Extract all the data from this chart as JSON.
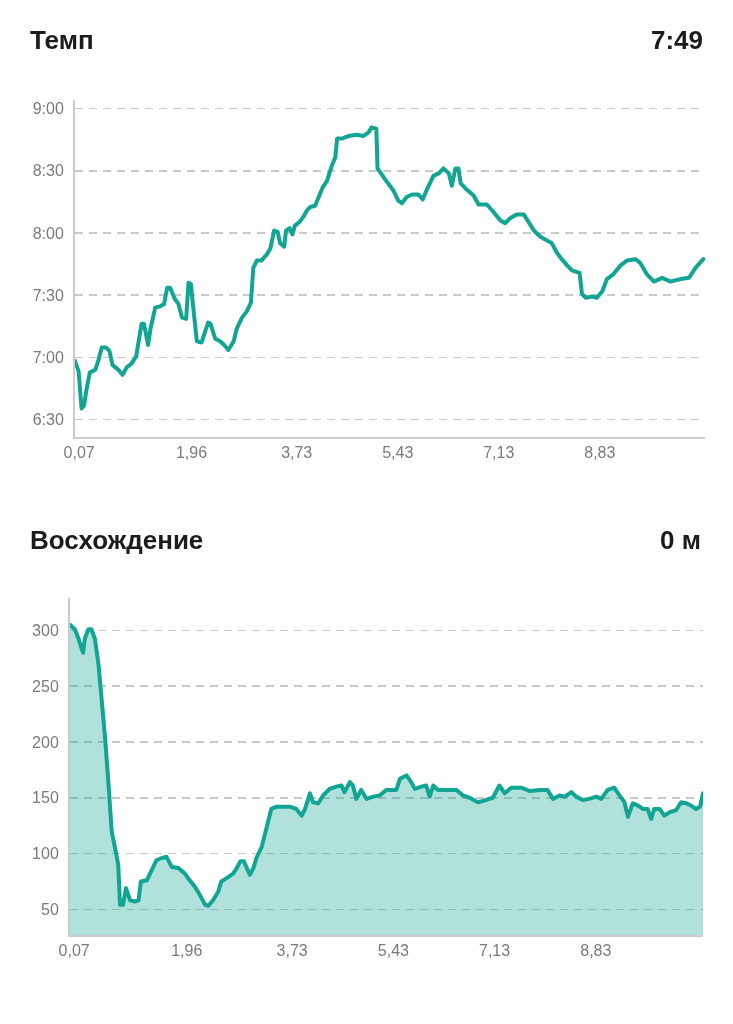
{
  "chart_data": [
    {
      "type": "line",
      "title": "Темп",
      "annotations": [
        "7:49"
      ],
      "x": [
        0,
        0.06,
        0.11,
        0.15,
        0.2,
        0.25,
        0.34,
        0.39,
        0.45,
        0.52,
        0.58,
        0.63,
        0.73,
        0.8,
        0.87,
        0.95,
        1.03,
        1.12,
        1.16,
        1.23,
        1.27,
        1.35,
        1.43,
        1.5,
        1.55,
        1.6,
        1.68,
        1.74,
        1.8,
        1.87,
        1.91,
        1.95,
        1.99,
        2.05,
        2.13,
        2.19,
        2.24,
        2.28,
        2.36,
        2.44,
        2.51,
        2.58,
        2.67,
        2.72,
        2.81,
        2.89,
        2.96,
        3.0,
        3.06,
        3.14,
        3.23,
        3.29,
        3.35,
        3.41,
        3.45,
        3.52,
        3.55,
        3.61,
        3.66,
        3.7,
        3.78,
        3.84,
        3.9,
        3.96,
        4.04,
        4.1,
        4.17,
        4.24,
        4.32,
        4.38,
        4.41,
        4.49,
        4.6,
        4.74,
        4.85,
        4.94,
        4.99,
        5.07,
        5.09,
        5.25,
        5.36,
        5.44,
        5.5,
        5.58,
        5.67,
        5.78,
        5.85,
        5.92,
        6.03,
        6.12,
        6.2,
        6.29,
        6.34,
        6.4,
        6.45,
        6.49,
        6.59,
        6.71,
        6.79,
        6.93,
        7.04,
        7.16,
        7.24,
        7.32,
        7.43,
        7.55,
        7.63,
        7.72,
        7.83,
        7.94,
        8.02,
        8.11,
        8.19,
        8.28,
        8.36,
        8.49,
        8.53,
        8.59,
        8.7,
        8.78,
        8.87,
        8.95,
        9.06,
        9.18,
        9.29,
        9.43,
        9.51,
        9.62,
        9.74,
        9.88,
        10.02,
        10.19,
        10.33,
        10.44,
        10.57
      ],
      "series": [
        {
          "color": "#12a593",
          "values": [
            6.97,
            6.89,
            6.59,
            6.61,
            6.76,
            6.88,
            6.9,
            6.97,
            7.08,
            7.08,
            7.05,
            6.94,
            6.9,
            6.86,
            6.92,
            6.95,
            7.01,
            7.27,
            7.27,
            7.1,
            7.23,
            7.4,
            7.41,
            7.43,
            7.56,
            7.56,
            7.47,
            7.43,
            7.32,
            7.31,
            7.6,
            7.59,
            7.4,
            7.13,
            7.12,
            7.21,
            7.28,
            7.27,
            7.15,
            7.13,
            7.1,
            7.06,
            7.13,
            7.23,
            7.32,
            7.37,
            7.44,
            7.72,
            7.78,
            7.78,
            7.83,
            7.88,
            8.02,
            8.01,
            7.92,
            7.89,
            8.02,
            8.04,
            7.99,
            8.06,
            8.09,
            8.13,
            8.18,
            8.21,
            8.22,
            8.29,
            8.37,
            8.42,
            8.54,
            8.61,
            8.76,
            8.76,
            8.78,
            8.79,
            8.78,
            8.81,
            8.85,
            8.84,
            8.52,
            8.41,
            8.34,
            8.26,
            8.24,
            8.29,
            8.31,
            8.31,
            8.27,
            8.35,
            8.46,
            8.48,
            8.52,
            8.48,
            8.38,
            8.52,
            8.52,
            8.4,
            8.35,
            8.3,
            8.23,
            8.23,
            8.17,
            8.1,
            8.08,
            8.12,
            8.15,
            8.15,
            8.09,
            8.02,
            7.97,
            7.94,
            7.92,
            7.84,
            7.79,
            7.74,
            7.7,
            7.68,
            7.51,
            7.48,
            7.49,
            7.48,
            7.53,
            7.63,
            7.67,
            7.74,
            7.78,
            7.79,
            7.76,
            7.67,
            7.61,
            7.64,
            7.61,
            7.63,
            7.64,
            7.72,
            7.79
          ]
        }
      ],
      "xlim": [
        0,
        10.6
      ],
      "xticks": [
        {
          "value": 0.07,
          "label": "0,07"
        },
        {
          "value": 1.96,
          "label": "1,96"
        },
        {
          "value": 3.73,
          "label": "3,73"
        },
        {
          "value": 5.43,
          "label": "5,43"
        },
        {
          "value": 7.13,
          "label": "7,13"
        },
        {
          "value": 8.83,
          "label": "8,83"
        }
      ],
      "ylim": [
        6.36,
        9.07
      ],
      "yticks": [
        {
          "value": 6.5,
          "label": "6:30"
        },
        {
          "value": 7,
          "label": "7:00"
        },
        {
          "value": 7.5,
          "label": "7:30"
        },
        {
          "value": 8,
          "label": "8:00"
        },
        {
          "value": 8.5,
          "label": "8:30"
        },
        {
          "value": 9,
          "label": "9:00"
        }
      ],
      "grid": "y",
      "line_style": "solid"
    },
    {
      "type": "area",
      "title": "Восхождение",
      "annotations": [
        "0 м"
      ],
      "x": [
        0,
        0.08,
        0.14,
        0.2,
        0.22,
        0.25,
        0.31,
        0.36,
        0.42,
        0.48,
        0.53,
        0.59,
        0.64,
        0.7,
        0.76,
        0.81,
        0.84,
        0.89,
        0.94,
        1.01,
        1.09,
        1.15,
        1.19,
        1.29,
        1.37,
        1.45,
        1.54,
        1.62,
        1.71,
        1.82,
        1.93,
        2.01,
        2.1,
        2.18,
        2.27,
        2.32,
        2.4,
        2.49,
        2.54,
        2.63,
        2.74,
        2.8,
        2.86,
        2.92,
        3.02,
        3.08,
        3.13,
        3.22,
        3.3,
        3.38,
        3.47,
        3.58,
        3.69,
        3.8,
        3.89,
        3.94,
        4.03,
        4.08,
        4.17,
        4.25,
        4.36,
        4.47,
        4.56,
        4.61,
        4.7,
        4.75,
        4.81,
        4.89,
        4.98,
        5.09,
        5.2,
        5.31,
        5.48,
        5.54,
        5.65,
        5.73,
        5.79,
        5.9,
        5.98,
        6.04,
        6.1,
        6.18,
        6.32,
        6.49,
        6.6,
        6.71,
        6.85,
        6.99,
        7.1,
        7.21,
        7.3,
        7.41,
        7.58,
        7.72,
        7.89,
        8.02,
        8.11,
        8.22,
        8.31,
        8.42,
        8.5,
        8.61,
        8.72,
        8.84,
        8.92,
        9.03,
        9.14,
        9.23,
        9.31,
        9.37,
        9.45,
        9.54,
        9.62,
        9.7,
        9.76,
        9.81,
        9.9,
        9.98,
        10.07,
        10.18,
        10.26,
        10.35,
        10.43,
        10.51,
        10.58,
        10.63
      ],
      "series": [
        {
          "color": "#12a593",
          "values": [
            305,
            301,
            293,
            283,
            280,
            293,
            301,
            301,
            292,
            269,
            239,
            203,
            167,
            120,
            104,
            90,
            54,
            54,
            69,
            58,
            57,
            58,
            75,
            76,
            85,
            94,
            96,
            97,
            88,
            87,
            82,
            76,
            70,
            63,
            54,
            53,
            58,
            66,
            75,
            78,
            82,
            87,
            93,
            93,
            81,
            87,
            96,
            106,
            123,
            140,
            142,
            142,
            142,
            140,
            134,
            139,
            154,
            146,
            145,
            152,
            158,
            160,
            161,
            155,
            164,
            161,
            149,
            157,
            149,
            151,
            152,
            157,
            157,
            167,
            170,
            164,
            158,
            160,
            161,
            151,
            161,
            157,
            157,
            157,
            152,
            150,
            146,
            148,
            150,
            161,
            154,
            159,
            159,
            156,
            157,
            157,
            149,
            152,
            151,
            155,
            151,
            148,
            149,
            151,
            149,
            157,
            159,
            152,
            146,
            133,
            145,
            143,
            140,
            140,
            131,
            140,
            140,
            134,
            137,
            139,
            146,
            145,
            143,
            140,
            142,
            154
          ]
        }
      ],
      "xlim": [
        0,
        10.63
      ],
      "xticks": [
        {
          "value": 0.07,
          "label": "0,07"
        },
        {
          "value": 1.96,
          "label": "1,96"
        },
        {
          "value": 3.73,
          "label": "3,73"
        },
        {
          "value": 5.43,
          "label": "5,43"
        },
        {
          "value": 7.13,
          "label": "7,13"
        },
        {
          "value": 8.83,
          "label": "8,83"
        }
      ],
      "ylim": [
        27,
        329
      ],
      "yticks": [
        50,
        100,
        150,
        200,
        250,
        300
      ],
      "grid": "y",
      "line_style": "solid"
    }
  ]
}
